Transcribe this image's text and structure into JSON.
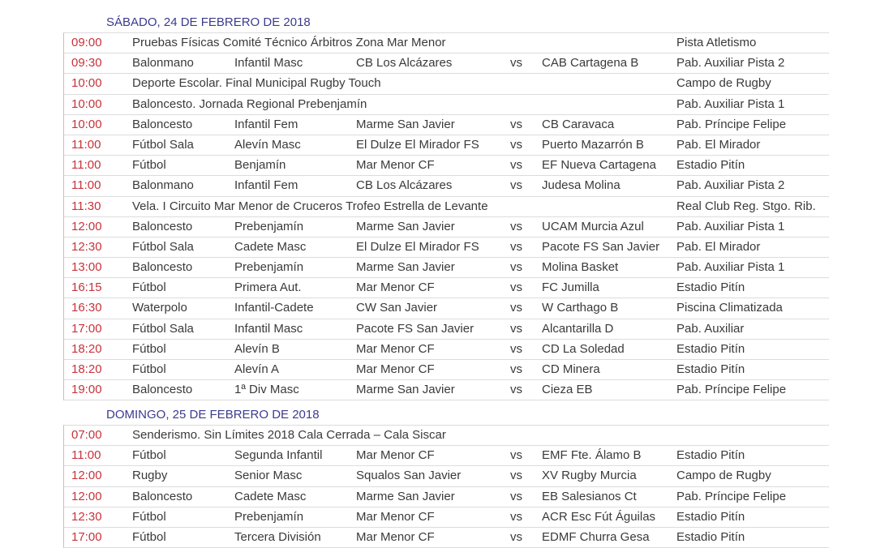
{
  "days": [
    {
      "title": "SÁBADO, 24 DE FEBRERO DE 2018",
      "rows": [
        {
          "time": "09:00",
          "sport": "Pruebas Físicas Comité Técnico Árbitros Zona Mar Menor",
          "category": "",
          "home": "",
          "vs": "",
          "away": "",
          "venue": "Pista Atletismo"
        },
        {
          "time": "09:30",
          "sport": "Balonmano",
          "category": "Infantil Masc",
          "home": "CB Los Alcázares",
          "vs": "vs",
          "away": "CAB Cartagena B",
          "venue": "Pab. Auxiliar Pista 2"
        },
        {
          "time": "10:00",
          "sport": "Deporte Escolar. Final Municipal Rugby Touch",
          "category": "",
          "home": "",
          "vs": "",
          "away": "",
          "venue": "Campo de Rugby"
        },
        {
          "time": "10:00",
          "sport": "Baloncesto. Jornada Regional Prebenjamín",
          "category": "",
          "home": "",
          "vs": "",
          "away": "",
          "venue": "Pab. Auxiliar Pista 1"
        },
        {
          "time": "10:00",
          "sport": "Baloncesto",
          "category": "Infantil Fem",
          "home": "Marme San Javier",
          "vs": "vs",
          "away": "CB Caravaca",
          "venue": "Pab. Príncipe Felipe"
        },
        {
          "time": "11:00",
          "sport": "Fútbol Sala",
          "category": "Alevín Masc",
          "home": "El Dulze El Mirador FS",
          "vs": "vs",
          "away": "Puerto Mazarrón B",
          "venue": "Pab. El Mirador"
        },
        {
          "time": "11:00",
          "sport": "Fútbol",
          "category": "Benjamín",
          "home": "Mar Menor CF",
          "vs": "vs",
          "away": "EF Nueva Cartagena",
          "venue": "Estadio Pitín"
        },
        {
          "time": "11:00",
          "sport": "Balonmano",
          "category": "Infantil Fem",
          "home": "CB Los Alcázares",
          "vs": "vs",
          "away": "Judesa Molina",
          "venue": "Pab. Auxiliar Pista 2"
        },
        {
          "time": "11:30",
          "sport": "Vela. I Circuito Mar Menor de Cruceros Trofeo Estrella de Levante",
          "category": "",
          "home": "",
          "vs": "",
          "away": "",
          "venue": "Real Club Reg. Stgo. Rib."
        },
        {
          "time": "12:00",
          "sport": "Baloncesto",
          "category": "Prebenjamín",
          "home": "Marme San Javier",
          "vs": "vs",
          "away": "UCAM Murcia Azul",
          "venue": "Pab. Auxiliar Pista 1"
        },
        {
          "time": "12:30",
          "sport": "Fútbol Sala",
          "category": "Cadete Masc",
          "home": "El Dulze El Mirador FS",
          "vs": "vs",
          "away": "Pacote FS San Javier",
          "venue": "Pab. El Mirador"
        },
        {
          "time": "13:00",
          "sport": "Baloncesto",
          "category": "Prebenjamín",
          "home": "Marme San Javier",
          "vs": "vs",
          "away": "Molina Basket",
          "venue": "Pab. Auxiliar Pista 1"
        },
        {
          "time": "16:15",
          "sport": "Fútbol",
          "category": "Primera Aut.",
          "home": "Mar Menor CF",
          "vs": "vs",
          "away": "FC Jumilla",
          "venue": "Estadio Pitín"
        },
        {
          "time": "16:30",
          "sport": "Waterpolo",
          "category": "Infantil-Cadete",
          "home": "CW San Javier",
          "vs": "vs",
          "away": "W Carthago B",
          "venue": "Piscina Climatizada"
        },
        {
          "time": "17:00",
          "sport": "Fútbol Sala",
          "category": "Infantil Masc",
          "home": "Pacote FS San Javier",
          "vs": "vs",
          "away": "Alcantarilla D",
          "venue": "Pab. Auxiliar"
        },
        {
          "time": "18:20",
          "sport": "Fútbol",
          "category": "Alevín B",
          "home": "Mar Menor CF",
          "vs": "vs",
          "away": "CD La Soledad",
          "venue": "Estadio Pitín"
        },
        {
          "time": "18:20",
          "sport": "Fútbol",
          "category": "Alevín A",
          "home": "Mar Menor CF",
          "vs": "vs",
          "away": "CD Minera",
          "venue": "Estadio Pitín"
        },
        {
          "time": "19:00",
          "sport": "Baloncesto",
          "category": "1ª Div Masc",
          "home": "Marme San Javier",
          "vs": "vs",
          "away": "Cieza EB",
          "venue": "Pab. Príncipe Felipe"
        }
      ]
    },
    {
      "title": "DOMINGO, 25 DE FEBRERO DE 2018",
      "rows": [
        {
          "time": "07:00",
          "sport": "Senderismo. Sin Límites 2018   Cala Cerrada – Cala Siscar",
          "category": "",
          "home": "",
          "vs": "",
          "away": "",
          "venue": ""
        },
        {
          "time": "11:00",
          "sport": "Fútbol",
          "category": "Segunda Infantil",
          "home": "Mar Menor CF",
          "vs": "vs",
          "away": "EMF Fte. Álamo B",
          "venue": "Estadio Pitín"
        },
        {
          "time": "12:00",
          "sport": "Rugby",
          "category": "Senior Masc",
          "home": "Squalos San Javier",
          "vs": "vs",
          "away": "XV Rugby Murcia",
          "venue": "Campo de Rugby"
        },
        {
          "time": "12:00",
          "sport": "Baloncesto",
          "category": "Cadete Masc",
          "home": "Marme San Javier",
          "vs": "vs",
          "away": "EB Salesianos Ct",
          "venue": "Pab. Príncipe Felipe"
        },
        {
          "time": "12:30",
          "sport": "Fútbol",
          "category": "Prebenjamín",
          "home": "Mar Menor CF",
          "vs": "vs",
          "away": "ACR Esc Fút Águilas",
          "venue": "Estadio Pitín"
        },
        {
          "time": "17:00",
          "sport": "Fútbol",
          "category": "Tercera División",
          "home": "Mar Menor CF",
          "vs": "vs",
          "away": "EDMF Churra Gesa",
          "venue": "Estadio Pitín"
        }
      ]
    }
  ]
}
